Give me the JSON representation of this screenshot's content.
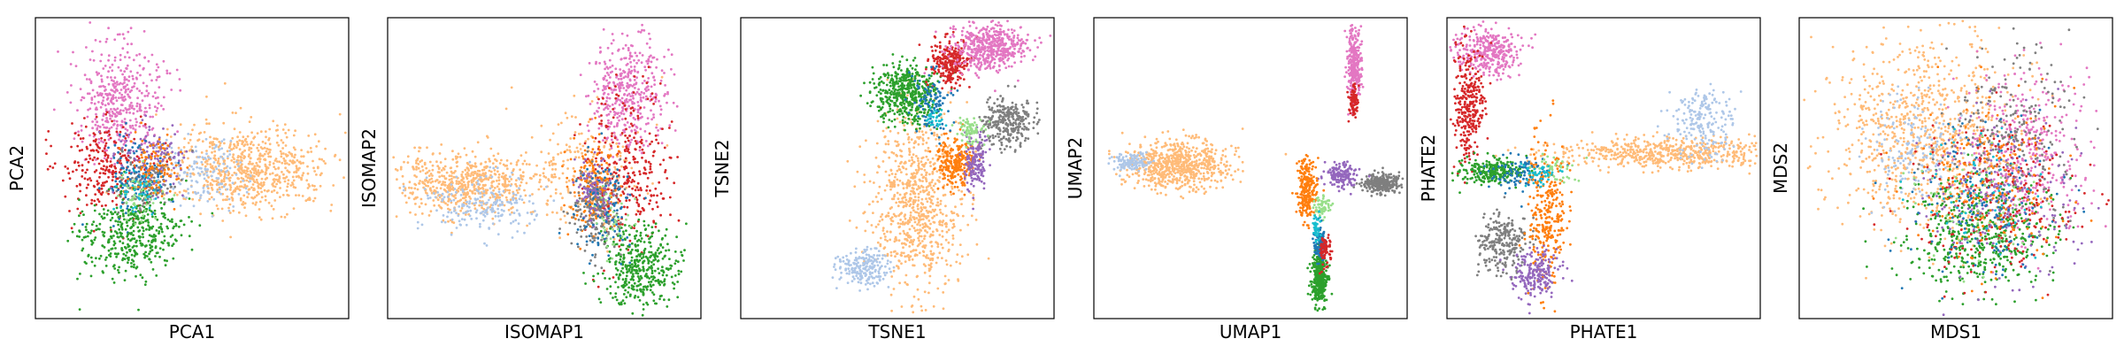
{
  "figure": {
    "panel_count": 6,
    "background": "#ffffff"
  },
  "palette": {
    "blue": "#1f77b4",
    "light_blue": "#aec7e8",
    "orange": "#ff7f0e",
    "light_orange": "#ffbb78",
    "green": "#2ca02c",
    "light_green": "#98df8a",
    "red": "#d62728",
    "purple": "#9467bd",
    "pink": "#e377c2",
    "gray": "#7f7f7f",
    "olive": "#bcbd22",
    "cyan": "#17becf"
  },
  "chart_data": [
    {
      "type": "scatter",
      "xlabel": "PCA1",
      "ylabel": "PCA2",
      "xticks": [],
      "yticks": [],
      "grid": false,
      "clusters": [
        {
          "color": "light_orange",
          "cx": 0.68,
          "cy": 0.5,
          "sx": 0.13,
          "sy": 0.07,
          "n": 700
        },
        {
          "color": "light_blue",
          "cx": 0.52,
          "cy": 0.52,
          "sx": 0.07,
          "sy": 0.06,
          "n": 150
        },
        {
          "color": "pink",
          "cx": 0.27,
          "cy": 0.27,
          "sx": 0.07,
          "sy": 0.09,
          "n": 420
        },
        {
          "color": "red",
          "cx": 0.22,
          "cy": 0.5,
          "sx": 0.07,
          "sy": 0.08,
          "n": 260
        },
        {
          "color": "purple",
          "cx": 0.37,
          "cy": 0.47,
          "sx": 0.05,
          "sy": 0.06,
          "n": 150
        },
        {
          "color": "gray",
          "cx": 0.36,
          "cy": 0.55,
          "sx": 0.05,
          "sy": 0.05,
          "n": 120
        },
        {
          "color": "blue",
          "cx": 0.32,
          "cy": 0.54,
          "sx": 0.05,
          "sy": 0.07,
          "n": 120
        },
        {
          "color": "orange",
          "cx": 0.38,
          "cy": 0.5,
          "sx": 0.04,
          "sy": 0.05,
          "n": 100
        },
        {
          "color": "green",
          "cx": 0.3,
          "cy": 0.72,
          "sx": 0.08,
          "sy": 0.07,
          "n": 420
        },
        {
          "color": "light_green",
          "cx": 0.34,
          "cy": 0.6,
          "sx": 0.04,
          "sy": 0.04,
          "n": 50
        },
        {
          "color": "cyan",
          "cx": 0.33,
          "cy": 0.58,
          "sx": 0.04,
          "sy": 0.04,
          "n": 40
        }
      ]
    },
    {
      "type": "scatter",
      "xlabel": "ISOMAP1",
      "ylabel": "ISOMAP2",
      "xticks": [],
      "yticks": [],
      "grid": false,
      "clusters": [
        {
          "color": "light_orange",
          "cx": 0.25,
          "cy": 0.55,
          "sx": 0.11,
          "sy": 0.05,
          "n": 600
        },
        {
          "color": "light_orange",
          "cx": 0.62,
          "cy": 0.5,
          "sx": 0.1,
          "sy": 0.1,
          "n": 200
        },
        {
          "color": "light_blue",
          "cx": 0.3,
          "cy": 0.62,
          "sx": 0.09,
          "sy": 0.05,
          "n": 200
        },
        {
          "color": "pink",
          "cx": 0.77,
          "cy": 0.25,
          "sx": 0.06,
          "sy": 0.09,
          "n": 400
        },
        {
          "color": "red",
          "cx": 0.76,
          "cy": 0.5,
          "sx": 0.07,
          "sy": 0.13,
          "n": 300
        },
        {
          "color": "orange",
          "cx": 0.66,
          "cy": 0.57,
          "sx": 0.04,
          "sy": 0.07,
          "n": 200
        },
        {
          "color": "gray",
          "cx": 0.67,
          "cy": 0.64,
          "sx": 0.04,
          "sy": 0.07,
          "n": 200
        },
        {
          "color": "purple",
          "cx": 0.66,
          "cy": 0.57,
          "sx": 0.03,
          "sy": 0.05,
          "n": 100
        },
        {
          "color": "green",
          "cx": 0.81,
          "cy": 0.83,
          "sx": 0.06,
          "sy": 0.07,
          "n": 400
        },
        {
          "color": "blue",
          "cx": 0.7,
          "cy": 0.62,
          "sx": 0.05,
          "sy": 0.08,
          "n": 100
        },
        {
          "color": "light_green",
          "cx": 0.72,
          "cy": 0.68,
          "sx": 0.04,
          "sy": 0.05,
          "n": 40
        }
      ]
    },
    {
      "type": "scatter",
      "xlabel": "TSNE1",
      "ylabel": "TSNE2",
      "xticks": [],
      "yticks": [],
      "grid": false,
      "clusters": [
        {
          "color": "light_orange",
          "cx": 0.56,
          "cy": 0.62,
          "sx": 0.07,
          "sy": 0.15,
          "n": 800
        },
        {
          "color": "light_blue",
          "cx": 0.39,
          "cy": 0.83,
          "sx": 0.04,
          "sy": 0.03,
          "n": 200
        },
        {
          "color": "green",
          "cx": 0.53,
          "cy": 0.25,
          "sx": 0.05,
          "sy": 0.05,
          "n": 500
        },
        {
          "color": "red",
          "cx": 0.67,
          "cy": 0.15,
          "sx": 0.03,
          "sy": 0.04,
          "n": 250
        },
        {
          "color": "pink",
          "cx": 0.79,
          "cy": 0.1,
          "sx": 0.06,
          "sy": 0.04,
          "n": 500
        },
        {
          "color": "gray",
          "cx": 0.85,
          "cy": 0.35,
          "sx": 0.04,
          "sy": 0.04,
          "n": 300
        },
        {
          "color": "orange",
          "cx": 0.69,
          "cy": 0.48,
          "sx": 0.03,
          "sy": 0.04,
          "n": 250
        },
        {
          "color": "purple",
          "cx": 0.75,
          "cy": 0.47,
          "sx": 0.02,
          "sy": 0.05,
          "n": 150
        },
        {
          "color": "light_green",
          "cx": 0.73,
          "cy": 0.38,
          "sx": 0.02,
          "sy": 0.02,
          "n": 80
        },
        {
          "color": "blue",
          "cx": 0.61,
          "cy": 0.28,
          "sx": 0.03,
          "sy": 0.05,
          "n": 100
        },
        {
          "color": "cyan",
          "cx": 0.62,
          "cy": 0.33,
          "sx": 0.02,
          "sy": 0.02,
          "n": 30
        }
      ]
    },
    {
      "type": "scatter",
      "xlabel": "UMAP1",
      "ylabel": "UMAP2",
      "xticks": [],
      "yticks": [],
      "grid": false,
      "clusters": [
        {
          "color": "light_orange",
          "cx": 0.27,
          "cy": 0.49,
          "sx": 0.08,
          "sy": 0.04,
          "n": 700
        },
        {
          "color": "light_blue",
          "cx": 0.12,
          "cy": 0.48,
          "sx": 0.03,
          "sy": 0.015,
          "n": 120
        },
        {
          "color": "pink",
          "cx": 0.83,
          "cy": 0.15,
          "sx": 0.012,
          "sy": 0.06,
          "n": 300
        },
        {
          "color": "red",
          "cx": 0.83,
          "cy": 0.28,
          "sx": 0.008,
          "sy": 0.03,
          "n": 80
        },
        {
          "color": "gray",
          "cx": 0.92,
          "cy": 0.55,
          "sx": 0.03,
          "sy": 0.015,
          "n": 300
        },
        {
          "color": "purple",
          "cx": 0.79,
          "cy": 0.52,
          "sx": 0.025,
          "sy": 0.02,
          "n": 150
        },
        {
          "color": "orange",
          "cx": 0.68,
          "cy": 0.57,
          "sx": 0.015,
          "sy": 0.05,
          "n": 250
        },
        {
          "color": "light_green",
          "cx": 0.73,
          "cy": 0.63,
          "sx": 0.015,
          "sy": 0.02,
          "n": 60
        },
        {
          "color": "green",
          "cx": 0.72,
          "cy": 0.87,
          "sx": 0.012,
          "sy": 0.04,
          "n": 350
        },
        {
          "color": "blue",
          "cx": 0.72,
          "cy": 0.75,
          "sx": 0.01,
          "sy": 0.03,
          "n": 100
        },
        {
          "color": "red",
          "cx": 0.74,
          "cy": 0.77,
          "sx": 0.008,
          "sy": 0.025,
          "n": 80
        },
        {
          "color": "cyan",
          "cx": 0.71,
          "cy": 0.7,
          "sx": 0.006,
          "sy": 0.02,
          "n": 40
        }
      ]
    },
    {
      "type": "scatter",
      "xlabel": "PHATE1",
      "ylabel": "PHATE2",
      "xticks": [],
      "yticks": [],
      "grid": false,
      "clusters": [
        {
          "color": "light_orange",
          "cx": 0.7,
          "cy": 0.45,
          "sx": 0.18,
          "sy": 0.025,
          "n": 600
        },
        {
          "color": "light_blue",
          "cx": 0.82,
          "cy": 0.35,
          "sx": 0.05,
          "sy": 0.06,
          "n": 200
        },
        {
          "color": "pink",
          "cx": 0.13,
          "cy": 0.11,
          "sx": 0.05,
          "sy": 0.04,
          "n": 350
        },
        {
          "color": "red",
          "cx": 0.07,
          "cy": 0.3,
          "sx": 0.025,
          "sy": 0.1,
          "n": 300
        },
        {
          "color": "green",
          "cx": 0.14,
          "cy": 0.51,
          "sx": 0.05,
          "sy": 0.02,
          "n": 250
        },
        {
          "color": "blue",
          "cx": 0.22,
          "cy": 0.52,
          "sx": 0.05,
          "sy": 0.03,
          "n": 100
        },
        {
          "color": "gray",
          "cx": 0.18,
          "cy": 0.75,
          "sx": 0.04,
          "sy": 0.05,
          "n": 250
        },
        {
          "color": "orange",
          "cx": 0.32,
          "cy": 0.65,
          "sx": 0.03,
          "sy": 0.12,
          "n": 300
        },
        {
          "color": "purple",
          "cx": 0.28,
          "cy": 0.85,
          "sx": 0.04,
          "sy": 0.04,
          "n": 200
        },
        {
          "color": "light_green",
          "cx": 0.35,
          "cy": 0.5,
          "sx": 0.03,
          "sy": 0.02,
          "n": 40
        },
        {
          "color": "cyan",
          "cx": 0.3,
          "cy": 0.52,
          "sx": 0.03,
          "sy": 0.02,
          "n": 40
        }
      ]
    },
    {
      "type": "scatter",
      "xlabel": "MDS1",
      "ylabel": "MDS2",
      "xticks": [],
      "yticks": [],
      "grid": false,
      "clusters": [
        {
          "color": "light_orange",
          "cx": 0.4,
          "cy": 0.38,
          "sx": 0.15,
          "sy": 0.16,
          "n": 900
        },
        {
          "color": "light_blue",
          "cx": 0.35,
          "cy": 0.42,
          "sx": 0.08,
          "sy": 0.08,
          "n": 150
        },
        {
          "color": "pink",
          "cx": 0.73,
          "cy": 0.45,
          "sx": 0.1,
          "sy": 0.14,
          "n": 400
        },
        {
          "color": "gray",
          "cx": 0.68,
          "cy": 0.38,
          "sx": 0.1,
          "sy": 0.14,
          "n": 250
        },
        {
          "color": "green",
          "cx": 0.58,
          "cy": 0.72,
          "sx": 0.12,
          "sy": 0.09,
          "n": 500
        },
        {
          "color": "red",
          "cx": 0.62,
          "cy": 0.62,
          "sx": 0.14,
          "sy": 0.13,
          "n": 250
        },
        {
          "color": "purple",
          "cx": 0.65,
          "cy": 0.6,
          "sx": 0.12,
          "sy": 0.13,
          "n": 200
        },
        {
          "color": "orange",
          "cx": 0.6,
          "cy": 0.55,
          "sx": 0.12,
          "sy": 0.14,
          "n": 200
        },
        {
          "color": "blue",
          "cx": 0.58,
          "cy": 0.6,
          "sx": 0.12,
          "sy": 0.13,
          "n": 150
        },
        {
          "color": "light_green",
          "cx": 0.55,
          "cy": 0.62,
          "sx": 0.1,
          "sy": 0.1,
          "n": 60
        },
        {
          "color": "cyan",
          "cx": 0.55,
          "cy": 0.58,
          "sx": 0.1,
          "sy": 0.1,
          "n": 50
        }
      ]
    }
  ]
}
